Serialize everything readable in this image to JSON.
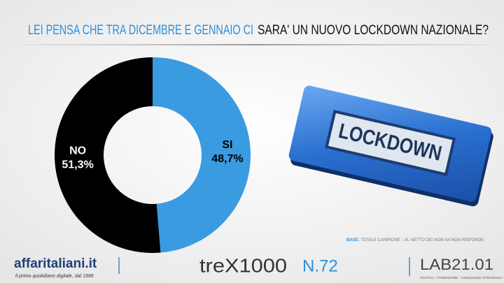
{
  "chart_data": {
    "type": "donut",
    "title": [
      "LEI PENSA CHE TRA DICEMBRE E GENNAIO CI",
      "SARA' UN NUOVO LOCKDOWN NAZIONALE?"
    ],
    "categories": [
      "SI",
      "NO"
    ],
    "values": [
      48.7,
      51.3
    ],
    "value_labels": [
      "48,7%",
      "51,3%"
    ],
    "colors": [
      "#3b9be0",
      "#000000"
    ]
  },
  "image_text": "LOCKDOWN",
  "note": {
    "label": "BASE:",
    "text": "TOTALE CAMPIONE – AL NETTO DEI NON SA NON RISPONDE"
  },
  "footer": {
    "brand": "affaritaliani.it",
    "tagline": "il primo quotidiano digitale, dal 1996",
    "logo": "treX1000",
    "number": "N.72",
    "lab": "LAB21.01",
    "lab_tagline": "POLITICA · FORMAZIONE · CONSULENZA STRATEGICA"
  }
}
